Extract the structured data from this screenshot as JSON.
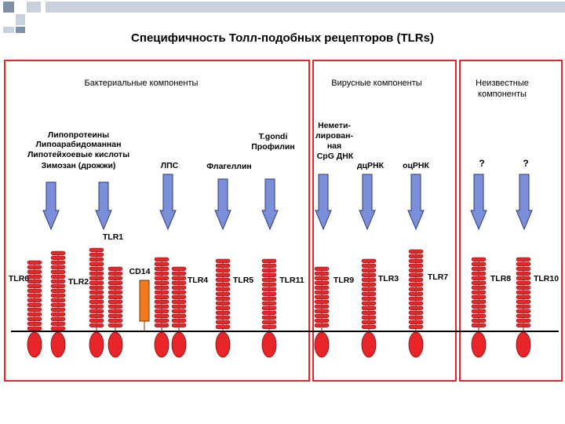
{
  "title": "Специфичность Толл-подобных рецепторов (TLRs)",
  "headers": {
    "bacterial": "Бактериальные компоненты",
    "viral": "Вирусные компоненты",
    "unknown_line1": "Неизвестные",
    "unknown_line2": "компоненты"
  },
  "ligands": {
    "lipo_1": "Липопротеины",
    "lipo_2": "Липоарабидоманнан",
    "lipo_3": "Липотейхоевые кислоты",
    "lipo_4": "Зимозан (дрожжи)",
    "lps": "ЛПС",
    "tgondi_1": "T.gondi",
    "tgondi_2": "Профилин",
    "flagellin": "Флагеллин",
    "cpg_1": "Немети-",
    "cpg_2": "лирован-",
    "cpg_3": "ная",
    "cpg_4": "CpG ДНК",
    "dsrna": "дцРНК",
    "ssrna": "оцРНК",
    "q1": "?",
    "q2": "?"
  },
  "receptors": {
    "tlr1": "TLR1",
    "tlr6": "TLR6",
    "tlr2": "TLR2",
    "cd14": "CD14",
    "tlr4": "TLR4",
    "tlr5": "TLR5",
    "tlr11": "TLR11",
    "tlr9": "TLR9",
    "tlr3": "TLR3",
    "tlr7": "TLR7",
    "tlr8": "TLR8",
    "tlr10": "TLR10"
  },
  "colors": {
    "panel_border": "#e8262a",
    "receptor_fill": "#e8262a",
    "receptor_stroke": "#7a1010",
    "cd14_fill": "#f07a1a",
    "arrow_fill": "#7b8fd9",
    "arrow_stroke": "#2e3a80",
    "deco_dark": "#7f8fa6",
    "deco_light": "#c9d1dc"
  }
}
